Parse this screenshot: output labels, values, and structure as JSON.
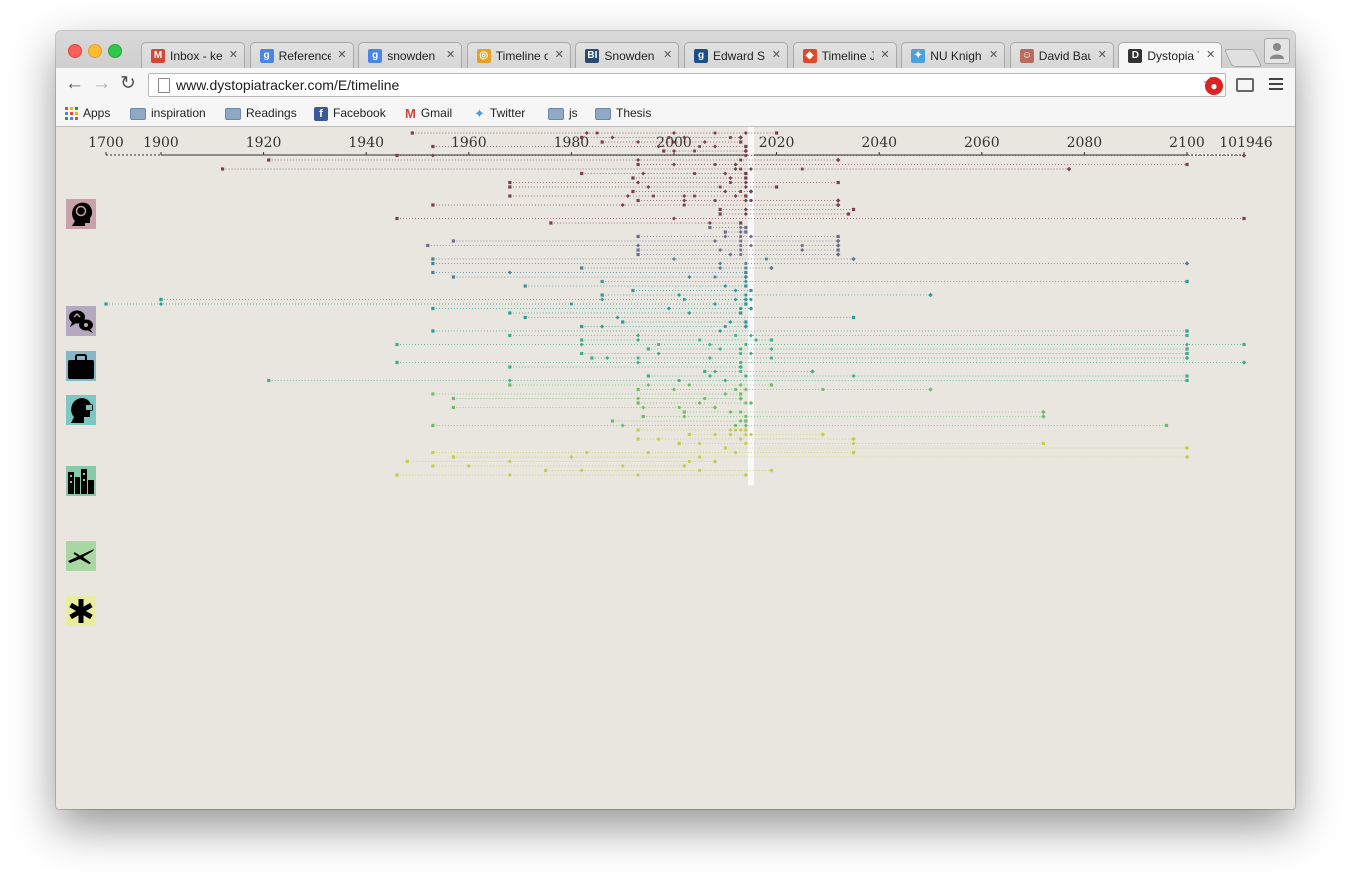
{
  "browser": {
    "tabs": [
      {
        "label": "Inbox - ke",
        "favicon": "gmail-icon",
        "fav_color": "#d44638",
        "fav_glyph": "M"
      },
      {
        "label": "Reference",
        "favicon": "google-icon",
        "fav_color": "#4a86e8",
        "fav_glyph": "g"
      },
      {
        "label": "snowden le",
        "favicon": "google-icon",
        "fav_color": "#4a86e8",
        "fav_glyph": "g"
      },
      {
        "label": "Timeline of",
        "favicon": "aljazeera-icon",
        "fav_color": "#e2a320",
        "fav_glyph": "◎"
      },
      {
        "label": "Snowden L",
        "favicon": "bi-icon",
        "fav_color": "#2b4a6f",
        "fav_glyph": "BI"
      },
      {
        "label": "Edward Sn",
        "favicon": "guardian-icon",
        "fav_color": "#1b4f8a",
        "fav_glyph": "g"
      },
      {
        "label": "Timeline JS",
        "favicon": "timelinejs-icon",
        "fav_color": "#e0492c",
        "fav_glyph": "◆"
      },
      {
        "label": "NU Knight",
        "favicon": "twitter-icon",
        "fav_color": "#4ba1e0",
        "fav_glyph": "✦"
      },
      {
        "label": "David Bau",
        "favicon": "avatar-icon",
        "fav_color": "#b86b5e",
        "fav_glyph": "☺"
      },
      {
        "label": "Dystopia Tr",
        "favicon": "dystopia-icon",
        "fav_color": "#333333",
        "fav_glyph": "D"
      }
    ],
    "url": "www.dystopiatracker.com/E/timeline"
  },
  "bookmarks": [
    {
      "label": "Apps",
      "icon": "apps-grid-icon"
    },
    {
      "label": "inspiration",
      "icon": "folder-icon"
    },
    {
      "label": "Readings",
      "icon": "folder-icon"
    },
    {
      "label": "Facebook",
      "icon": "facebook-icon"
    },
    {
      "label": "Gmail",
      "icon": "gmail-icon"
    },
    {
      "label": "Twitter",
      "icon": "twitter-icon"
    },
    {
      "label": "js",
      "icon": "folder-icon"
    },
    {
      "label": "Thesis",
      "icon": "folder-icon"
    }
  ],
  "timeline": {
    "axis": {
      "compressed_left_label": "1700",
      "compressed_right_label": "101946",
      "main_range": [
        1900,
        2100
      ],
      "tick_labels": [
        "1900",
        "1920",
        "1940",
        "1960",
        "1980",
        "2000",
        "2020",
        "2040",
        "2060",
        "2080",
        "2100"
      ]
    },
    "present_year": 2015,
    "categories": [
      {
        "name": "mind",
        "icon": "brain-head-icon",
        "color": "#7a3f4e",
        "icon_bg": "#c9a1a8",
        "rows": [
          [
            1949,
            1983,
            1985,
            2000,
            2008,
            2014,
            2020
          ],
          [
            1982,
            1988,
            1999,
            2002,
            2011,
            2013
          ],
          [
            1986,
            1993,
            2000,
            2006,
            2013
          ],
          [
            1953,
            1997,
            2005,
            2008,
            2014
          ],
          [
            1998,
            2000,
            2004,
            2014
          ],
          [
            1946,
            1953,
            2014,
            2101946
          ],
          [
            1921,
            1993,
            2013,
            2032
          ],
          [
            1993,
            2000,
            2008,
            2012,
            2100
          ],
          [
            1912,
            2012,
            2013,
            2015,
            2025,
            2077
          ],
          [
            1982,
            1994,
            2004,
            2010,
            2014
          ],
          [
            1992,
            2011,
            2014
          ],
          [
            1968,
            1993,
            2011,
            2014,
            2032
          ],
          [
            1968,
            1995,
            2009,
            2014,
            2020
          ],
          [
            1992,
            2010,
            2013,
            2015
          ],
          [
            1968,
            1991,
            1996,
            2002,
            2004,
            2012,
            2014
          ],
          [
            1993,
            2002,
            2008,
            2014,
            2015,
            2032
          ],
          [
            1953,
            1990,
            2002,
            2032
          ],
          [
            2009,
            2014,
            2035
          ],
          [
            2009,
            2014,
            2034
          ],
          [
            1946,
            2000,
            2101946
          ],
          [
            1976,
            2007,
            2013
          ]
        ]
      },
      {
        "name": "communication",
        "icon": "chat-bubbles-icon",
        "color": "#6e6e8c",
        "icon_bg": "#b5a9c0",
        "rows": [
          [
            2007,
            2013,
            2014
          ],
          [
            2010,
            2013,
            2014
          ],
          [
            1993,
            2010,
            2013,
            2015,
            2032
          ],
          [
            1957,
            2008,
            2013,
            2032
          ],
          [
            1952,
            1993,
            2013,
            2015,
            2025,
            2032
          ],
          [
            1993,
            2009,
            2013,
            2025,
            2032
          ],
          [
            1993,
            2011,
            2013,
            2032
          ]
        ]
      },
      {
        "name": "security",
        "icon": "briefcase-icon",
        "color": "#4d7f96",
        "icon_bg": "#86b7c7",
        "rows": [
          [
            1953,
            2000,
            2018,
            2035
          ],
          [
            1953,
            2009,
            2014,
            2100
          ],
          [
            1982,
            2009,
            2014,
            2019
          ],
          [
            1953,
            1968,
            2014
          ],
          [
            1957,
            2003,
            2008,
            2014
          ]
        ]
      },
      {
        "name": "surveillance",
        "icon": "masked-head-icon",
        "color": "#2b9a9b",
        "icon_bg": "#7cc7c4",
        "rows": [
          [
            1986,
            2014,
            2100
          ],
          [
            1971,
            2010,
            2014
          ],
          [
            1992,
            2012,
            2015
          ],
          [
            1986,
            2001,
            2014,
            2050
          ],
          [
            1900,
            1986,
            2002,
            2012,
            2015,
            2014
          ],
          [
            1700,
            1900,
            1980,
            2008,
            2014
          ],
          [
            1953,
            1999,
            2013,
            2015
          ],
          [
            1968,
            2003,
            2013
          ],
          [
            1971,
            1989,
            2035
          ],
          [
            1990,
            2011,
            2014
          ],
          [
            1982,
            1986,
            2010,
            2014
          ],
          [
            1953,
            2009,
            2100
          ]
        ]
      },
      {
        "name": "urban",
        "icon": "city-buildings-icon",
        "color": "#3fae8c",
        "icon_bg": "#88c9a8",
        "rows": [
          [
            1968,
            1993,
            2012,
            2015,
            2100
          ],
          [
            1982,
            1993,
            2005,
            2016,
            2019
          ],
          [
            1946,
            1982,
            1997,
            2007,
            2014,
            2100,
            2101946
          ],
          [
            1995,
            2009,
            2013,
            2019,
            2100
          ],
          [
            1982,
            1997,
            2013,
            2015,
            2100
          ],
          [
            1984,
            1987,
            1993,
            2007,
            2019,
            2100
          ],
          [
            1946,
            1993,
            2013,
            2101946
          ],
          [
            1968,
            2013
          ],
          [
            2006,
            2008,
            2013,
            2027
          ],
          [
            1995,
            2007,
            2014,
            2035,
            2100
          ],
          [
            1921,
            1968,
            2001,
            2010,
            2100
          ]
        ]
      },
      {
        "name": "transport",
        "icon": "drone-icon",
        "color": "#72bb6c",
        "icon_bg": "#a9d7a2",
        "rows": [
          [
            1968,
            1995,
            2003,
            2013,
            2019
          ],
          [
            1993,
            2000,
            2012,
            2014,
            2029,
            2050
          ],
          [
            1953,
            2010,
            2013
          ],
          [
            1957,
            1993,
            2006,
            2013
          ],
          [
            1993,
            2005,
            2014,
            2015
          ],
          [
            1957,
            1994,
            2001,
            2008
          ],
          [
            2002,
            2011,
            2013,
            2072
          ],
          [
            1994,
            2002,
            2014,
            2072
          ],
          [
            1988,
            2013,
            2014
          ],
          [
            1953,
            1990,
            2012,
            2014,
            2096
          ]
        ]
      },
      {
        "name": "other",
        "icon": "asterisk-icon",
        "color": "#c6cc4a",
        "icon_bg": "#eaec9f",
        "rows": [
          [
            1993,
            2011,
            2012,
            2013,
            2014
          ],
          [
            2003,
            2008,
            2011,
            2014,
            2015,
            2029
          ],
          [
            1993,
            1997,
            2013,
            2035
          ],
          [
            2001,
            2005,
            2014,
            2035,
            2072
          ],
          [
            2010,
            2100
          ],
          [
            1953,
            1983,
            1995,
            2012,
            2035
          ],
          [
            1957,
            1980,
            2005,
            2100
          ],
          [
            1948,
            1968,
            2003,
            2008
          ],
          [
            1953,
            1960,
            1990,
            2002
          ],
          [
            1975,
            1982,
            2005,
            2019
          ],
          [
            1946,
            1968,
            1993,
            2014
          ]
        ]
      }
    ]
  }
}
